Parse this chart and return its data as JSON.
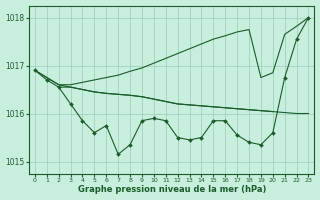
{
  "background_color": "#c8eedd",
  "grid_color": "#99ccbb",
  "line_color": "#1a5c2a",
  "xlabel": "Graphe pression niveau de la mer (hPa)",
  "ylim": [
    1014.75,
    1018.25
  ],
  "xlim": [
    -0.5,
    23.5
  ],
  "yticks": [
    1015,
    1016,
    1017,
    1018
  ],
  "xticks": [
    0,
    1,
    2,
    3,
    4,
    5,
    6,
    7,
    8,
    9,
    10,
    11,
    12,
    13,
    14,
    15,
    16,
    17,
    18,
    19,
    20,
    21,
    22,
    23
  ],
  "series": [
    {
      "x": [
        0,
        1,
        2,
        3,
        4,
        5,
        6,
        7,
        8,
        9,
        10,
        11,
        12,
        13,
        14,
        15,
        16,
        17,
        18,
        19,
        20,
        21,
        22,
        23
      ],
      "y": [
        1016.9,
        1016.75,
        1016.6,
        1016.6,
        1016.65,
        1016.7,
        1016.75,
        1016.8,
        1016.88,
        1016.95,
        1017.05,
        1017.15,
        1017.25,
        1017.35,
        1017.45,
        1017.55,
        1017.62,
        1017.7,
        1017.75,
        1016.75,
        1016.85,
        1017.65,
        1017.82,
        1018.0
      ],
      "markers": false
    },
    {
      "x": [
        0,
        1,
        2,
        3,
        4,
        5,
        6,
        7,
        8,
        9,
        10,
        11,
        12,
        13,
        14,
        15,
        16,
        17,
        18,
        19,
        20,
        21,
        22,
        23
      ],
      "y": [
        1016.9,
        1016.75,
        1016.6,
        1016.55,
        1016.5,
        1016.45,
        1016.42,
        1016.4,
        1016.38,
        1016.35,
        1016.3,
        1016.25,
        1016.2,
        1016.18,
        1016.16,
        1016.14,
        1016.12,
        1016.1,
        1016.08,
        1016.06,
        1016.04,
        1016.02,
        1016.0,
        1016.0
      ],
      "markers": false
    },
    {
      "x": [
        0,
        1,
        2,
        3,
        4,
        5,
        6,
        7,
        8,
        9,
        10,
        11,
        12,
        13,
        14,
        15,
        16,
        17,
        18,
        19,
        20,
        21,
        22,
        23
      ],
      "y": [
        1016.9,
        1016.7,
        1016.55,
        1016.2,
        1015.85,
        1015.6,
        1015.75,
        1015.15,
        1015.35,
        1015.85,
        1015.9,
        1015.85,
        1015.5,
        1015.45,
        1015.5,
        1015.85,
        1015.85,
        1015.55,
        1015.4,
        1015.35,
        1015.6,
        1016.75,
        1017.55,
        1018.0
      ],
      "markers": true
    },
    {
      "x": [
        2,
        3,
        4,
        5,
        6,
        7,
        8,
        9,
        10,
        11,
        12,
        13,
        14,
        15,
        16,
        17,
        18,
        19,
        20
      ],
      "y": [
        1016.55,
        1016.55,
        1016.5,
        1016.45,
        1016.42,
        1016.4,
        1016.38,
        1016.35,
        1016.3,
        1016.25,
        1016.2,
        1016.18,
        1016.16,
        1016.14,
        1016.12,
        1016.1,
        1016.08,
        1016.06,
        1016.04
      ],
      "markers": false
    }
  ]
}
